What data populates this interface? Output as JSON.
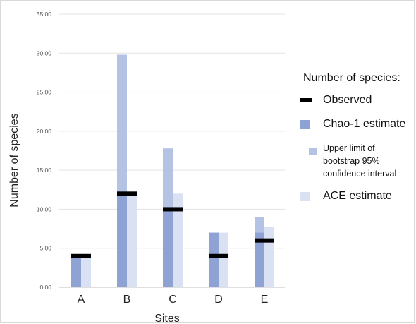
{
  "chart_data": {
    "type": "bar",
    "xlabel": "Sites",
    "ylabel": "Number of species",
    "ylim": [
      0,
      35
    ],
    "y_ticks": [
      "0,00",
      "5,00",
      "10,00",
      "15,00",
      "20,00",
      "25,00",
      "30,00",
      "35,00"
    ],
    "grid": true,
    "legend_position": "right",
    "categories": [
      "A",
      "B",
      "C",
      "D",
      "E"
    ],
    "series": [
      {
        "name": "Observed",
        "values": [
          4,
          12,
          10,
          4,
          6
        ],
        "color": "#000000",
        "marker": "bar-line"
      },
      {
        "name": "Chao-1 estimate",
        "values": [
          4,
          12,
          10,
          7,
          7
        ],
        "color": "#8fa2d4"
      },
      {
        "name": "Upper limit of bootstrap 95% confidence interval",
        "values": [
          4,
          29.8,
          17.8,
          7,
          9
        ],
        "color": "#b4c2e4"
      },
      {
        "name": "ACE estimate",
        "values": [
          4,
          12,
          12,
          7,
          7.7
        ],
        "color": "#d9e1f2"
      }
    ]
  },
  "legend": {
    "title": "Number of species:",
    "items": [
      {
        "label": "Observed"
      },
      {
        "label": "Chao-1 estimate"
      },
      {
        "label_lines": [
          "Upper limit of",
          "bootstrap 95%",
          "confidence interval"
        ]
      },
      {
        "label": "ACE estimate"
      }
    ]
  }
}
